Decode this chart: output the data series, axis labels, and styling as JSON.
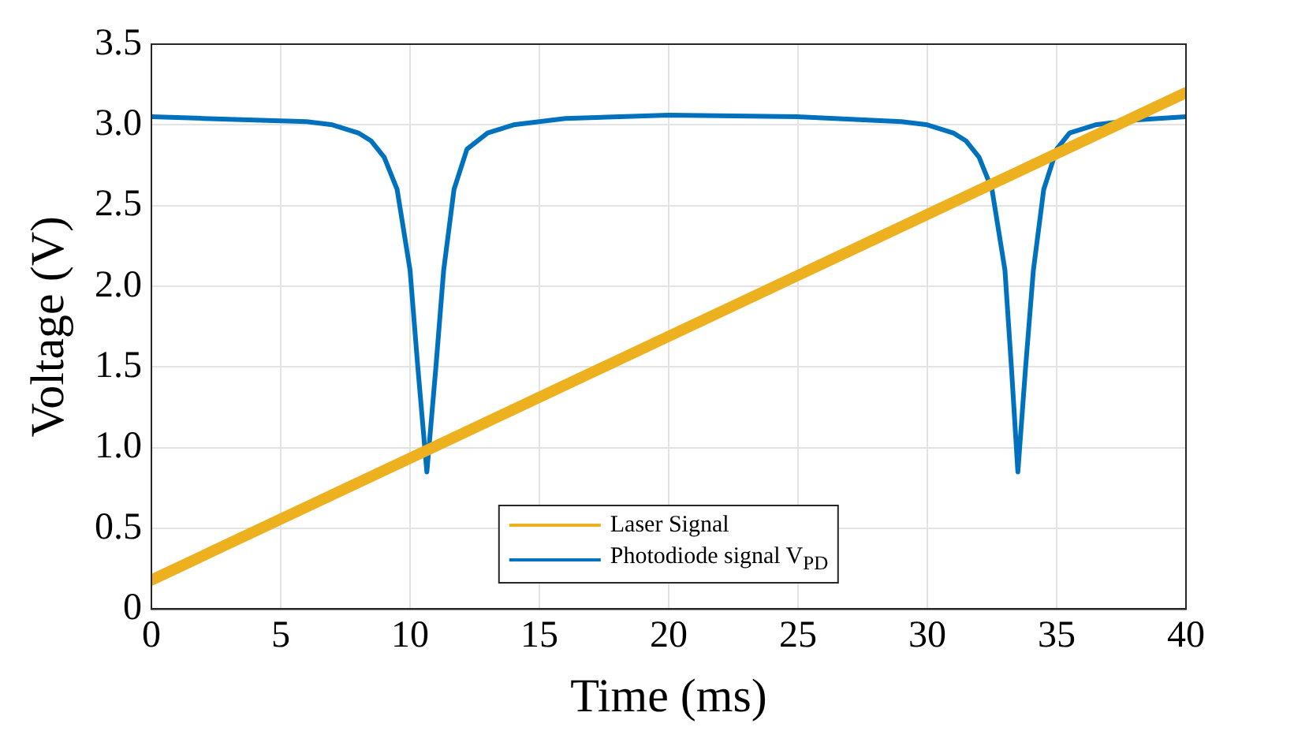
{
  "chart_data": {
    "type": "line",
    "xlabel": "Time (ms)",
    "ylabel": "Voltage (V)",
    "xlim": [
      0,
      40
    ],
    "xticks": [
      0,
      5,
      10,
      15,
      20,
      25,
      30,
      35,
      40
    ],
    "ylim": [
      0,
      3.5
    ],
    "yticks": [
      {
        "value": 0,
        "label": "0"
      },
      {
        "value": 0.5,
        "label": "0.5"
      },
      {
        "value": 1,
        "label": "1.0"
      },
      {
        "value": 1.5,
        "label": "1.5"
      },
      {
        "value": 2,
        "label": "2.0"
      },
      {
        "value": 2.5,
        "label": "2.5"
      },
      {
        "value": 3,
        "label": "3.0"
      },
      {
        "value": 3.5,
        "label": "3.5"
      }
    ],
    "grid": true,
    "legend": "bottom",
    "marker": "none",
    "line_style": "solid",
    "series": [
      {
        "name": "Laser Signal",
        "color": "#edb120",
        "x": [
          0,
          40
        ],
        "values": [
          0.18,
          3.2
        ]
      },
      {
        "name": "Photodiode signal V$_{PD}$",
        "color": "#0072bd",
        "x": [
          0,
          2,
          4,
          6,
          7,
          8,
          8.5,
          9,
          9.5,
          10,
          10.3,
          10.65,
          11,
          11.3,
          11.7,
          12.2,
          13,
          14,
          16,
          20,
          25,
          29,
          30,
          31,
          31.5,
          32,
          32.5,
          33,
          33.25,
          33.5,
          33.8,
          34.1,
          34.5,
          35,
          35.5,
          36.5,
          38,
          40
        ],
        "values": [
          3.05,
          3.04,
          3.03,
          3.02,
          3.0,
          2.95,
          2.9,
          2.8,
          2.6,
          2.1,
          1.5,
          0.85,
          1.5,
          2.1,
          2.6,
          2.85,
          2.95,
          3.0,
          3.04,
          3.06,
          3.05,
          3.02,
          3.0,
          2.95,
          2.9,
          2.8,
          2.6,
          2.1,
          1.5,
          0.85,
          1.5,
          2.1,
          2.6,
          2.85,
          2.95,
          3.0,
          3.03,
          3.05
        ]
      }
    ]
  }
}
